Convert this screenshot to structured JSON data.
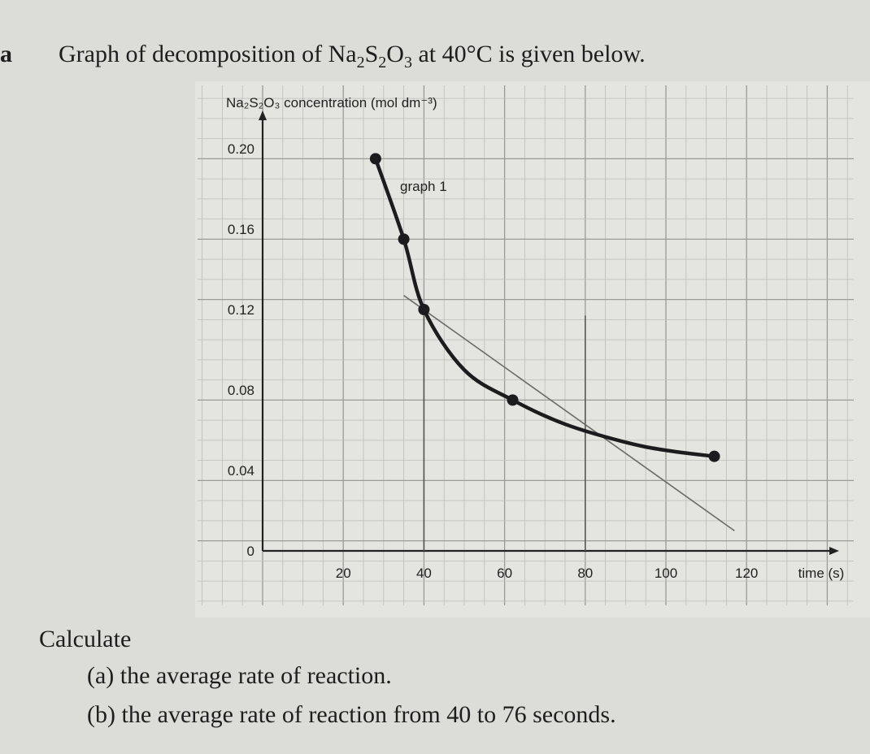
{
  "heading": {
    "label": "a",
    "prefix": "Graph of decomposition of ",
    "formula": [
      {
        "t": "Na",
        "sub": false
      },
      {
        "t": "2",
        "sub": true
      },
      {
        "t": "S",
        "sub": false
      },
      {
        "t": "2",
        "sub": true
      },
      {
        "t": "O",
        "sub": false
      },
      {
        "t": "3",
        "sub": true
      }
    ],
    "middle": " at ",
    "temperature": "40°C",
    "suffix": " is given below."
  },
  "chart_data": {
    "type": "line",
    "ylabel": "Na₂S₂O₃ concentration (mol dm⁻³)",
    "xlabel": "time (s)",
    "curve_label": "graph 1",
    "x_ticks": [
      20,
      40,
      60,
      80,
      100,
      120
    ],
    "x_tick_labels": [
      "20",
      "40",
      "60",
      "80",
      "100",
      "120"
    ],
    "y_ticks": [
      0,
      0.04,
      0.08,
      0.12,
      0.16,
      0.2
    ],
    "y_tick_labels": [
      "0",
      "0.04",
      "0.08",
      "0.12",
      "0.16",
      "0.20"
    ],
    "xlim": [
      0,
      150
    ],
    "ylim": [
      0,
      0.22
    ],
    "grid": true,
    "series": [
      {
        "x": [
          28,
          35,
          40,
          50,
          62,
          75,
          90,
          100,
          112
        ],
        "y": [
          0.195,
          0.155,
          0.12,
          0.09,
          0.075,
          0.063,
          0.054,
          0.05,
          0.047
        ],
        "markers": [
          0,
          1,
          2,
          4,
          8
        ]
      }
    ],
    "tangent": {
      "x": [
        35,
        117
      ],
      "y": [
        0.127,
        0.01
      ]
    },
    "verticals": [
      40,
      80
    ]
  },
  "calc_label": "Calculate",
  "questions": [
    {
      "label": "(a)",
      "text": "the average rate of reaction."
    },
    {
      "label": "(b)",
      "text": "the average rate of reaction from 40 to 76 seconds."
    }
  ]
}
